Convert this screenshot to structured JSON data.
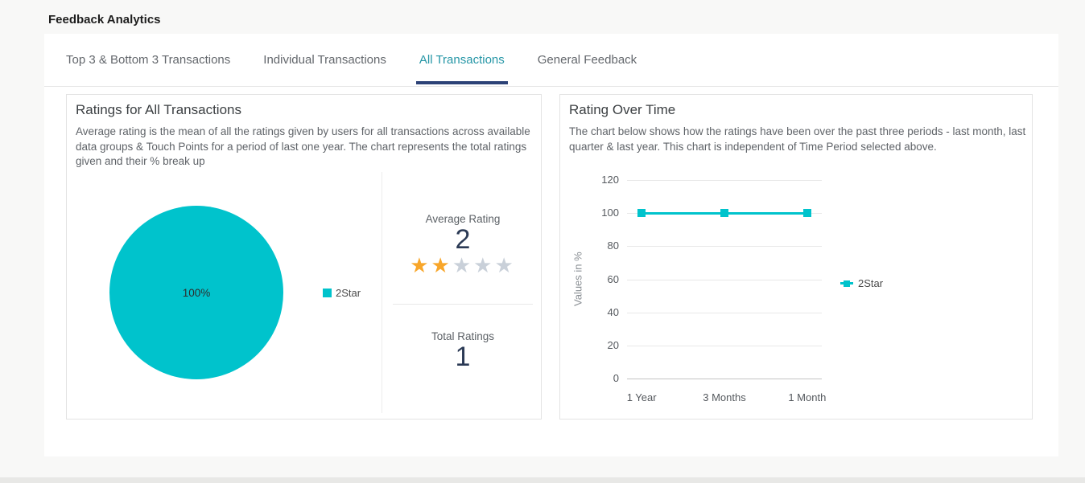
{
  "page": {
    "title": "Feedback Analytics"
  },
  "tabs": [
    {
      "label": "Top 3 & Bottom 3 Transactions",
      "active": false
    },
    {
      "label": "Individual Transactions",
      "active": false
    },
    {
      "label": "All Transactions",
      "active": true
    },
    {
      "label": "General Feedback",
      "active": false
    }
  ],
  "left_panel": {
    "title": "Ratings for All Transactions",
    "description": "Average rating is the mean of all the ratings given by users for all transactions across available data groups & Touch Points for a period of last one year. The chart represents the total ratings given and their % break up",
    "stats": {
      "average_rating_label": "Average Rating",
      "average_rating": "2",
      "stars_filled": 2,
      "stars_total": 5,
      "total_ratings_label": "Total Ratings",
      "total_ratings": "1"
    }
  },
  "right_panel": {
    "title": "Rating Over Time",
    "description": "The chart below shows how the ratings have been over the past three periods - last month, last quarter & last year. This chart is independent of Time Period selected above."
  },
  "chart_data": [
    {
      "type": "pie",
      "title": "Ratings for All Transactions",
      "slices": [
        {
          "label": "2Star",
          "value": 100,
          "display": "100%",
          "color": "#00c3cc"
        }
      ],
      "legend_position": "right"
    },
    {
      "type": "line",
      "title": "Rating Over Time",
      "categories": [
        "1 Year",
        "3 Months",
        "1 Month"
      ],
      "series": [
        {
          "name": "2Star",
          "values": [
            100,
            100,
            100
          ],
          "color": "#00c3cc"
        }
      ],
      "xlabel": "",
      "ylabel": "Values in %",
      "ylim": [
        0,
        120
      ],
      "yticks": [
        0,
        20,
        40,
        60,
        80,
        100,
        120
      ],
      "grid": true,
      "marker": "square",
      "legend_position": "right"
    }
  ],
  "colors": {
    "accent_teal": "#00c3cc",
    "active_tab_text": "#2596a6",
    "active_tab_underline": "#2c4277",
    "star_filled": "#f8a62a",
    "star_empty": "#c9d0d9",
    "big_number": "#2b3a55"
  }
}
